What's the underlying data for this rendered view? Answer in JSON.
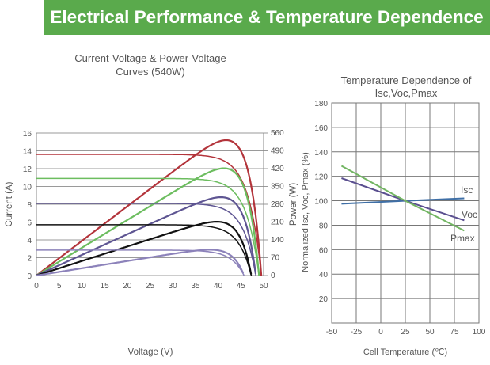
{
  "banner": "Electrical Performance & Temperature Dependence",
  "chart_data": [
    {
      "type": "line",
      "title": "Current-Voltage & Power-Voltage Curves (540W)",
      "title_lines": [
        "Current-Voltage & Power-Voltage",
        "Curves (540W)"
      ],
      "xlabel": "Voltage (V)",
      "ylabel": "Current (A)",
      "y2label": "Power (W)",
      "xlim": [
        0,
        50
      ],
      "ylim": [
        0,
        16
      ],
      "y2lim": [
        0,
        560
      ],
      "xticks": [
        0,
        5,
        10,
        15,
        20,
        25,
        30,
        35,
        40,
        45,
        50
      ],
      "yticks": [
        0,
        2,
        4,
        6,
        8,
        10,
        12,
        14,
        16
      ],
      "y2ticks": [
        0,
        70,
        140,
        210,
        280,
        350,
        420,
        490,
        560
      ],
      "grid": "horizontal",
      "series": [
        {
          "name": "curve-1",
          "color": "#b3343b",
          "isc": 13.6,
          "voc": 49.5,
          "pmax": 540,
          "vmp": 41
        },
        {
          "name": "curve-2",
          "color": "#6cbd5f",
          "isc": 10.9,
          "voc": 49.0,
          "pmax": 432,
          "vmp": 41
        },
        {
          "name": "curve-3",
          "color": "#5e5592",
          "isc": 8.1,
          "voc": 48.3,
          "pmax": 320,
          "vmp": 40.5
        },
        {
          "name": "curve-4",
          "color": "#111111",
          "isc": 5.7,
          "voc": 47.3,
          "pmax": 210,
          "vmp": 40
        },
        {
          "name": "curve-5",
          "color": "#8c82ba",
          "isc": 2.85,
          "voc": 45.7,
          "pmax": 103,
          "vmp": 39
        }
      ]
    },
    {
      "type": "line",
      "title": "Temperature Dependence of Isc,Voc,Pmax",
      "title_lines": [
        "Temperature Dependence of",
        "Isc,Voc,Pmax"
      ],
      "xlabel": "Cell Temperature (℃)",
      "ylabel": "Normalized Isc, Voc, Pmax (%)",
      "xlim": [
        -50,
        100
      ],
      "ylim": [
        0,
        180
      ],
      "xticks": [
        -50,
        -25,
        0,
        25,
        50,
        75,
        100
      ],
      "yticks": [
        20,
        40,
        60,
        80,
        100,
        120,
        140,
        160,
        180
      ],
      "grid": "both",
      "series": [
        {
          "name": "Isc",
          "color": "#3f6fa6",
          "x": [
            -40,
            25,
            85
          ],
          "y": [
            97.5,
            100,
            102
          ]
        },
        {
          "name": "Voc",
          "color": "#5a4f8f",
          "x": [
            -40,
            25,
            85
          ],
          "y": [
            118.5,
            100,
            84
          ]
        },
        {
          "name": "Pmax",
          "color": "#72b562",
          "x": [
            -40,
            25,
            85
          ],
          "y": [
            128.5,
            100,
            75.5
          ]
        }
      ]
    }
  ]
}
